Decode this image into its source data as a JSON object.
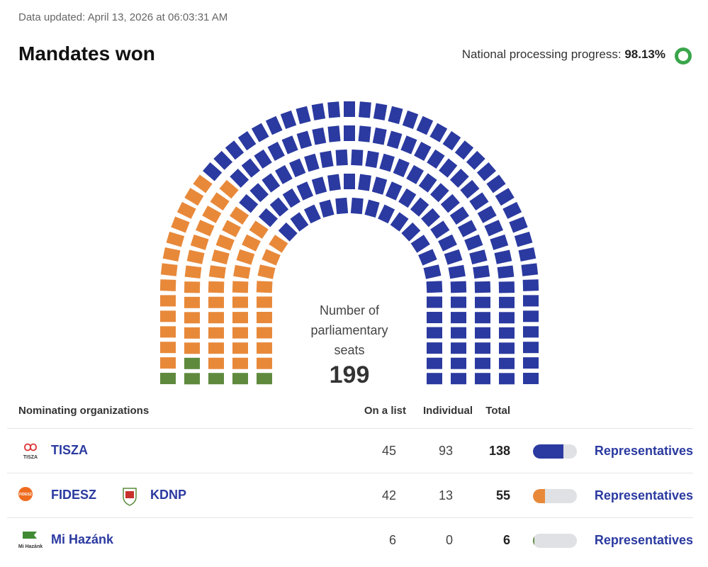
{
  "header": {
    "updated": "Data updated: April 13, 2026 at 06:03:31 AM",
    "title": "Mandates won",
    "progress_label": "National processing progress:",
    "progress_value": "98.13%"
  },
  "seat_chart": {
    "center_label": "Number of parliamentary seats",
    "total": 199
  },
  "table": {
    "columns": [
      "Nominating organizations",
      "On a list",
      "Individual",
      "Total"
    ],
    "rows": [
      {
        "orgs": [
          {
            "name": "TISZA",
            "logo_text": "TISZA"
          }
        ],
        "on_list": 45,
        "individual": 93,
        "total": 138,
        "color": "#2b3aa0",
        "link": "Representatives"
      },
      {
        "orgs": [
          {
            "name": "FIDESZ",
            "logo_text": "FIDESZ"
          },
          {
            "name": "KDNP"
          }
        ],
        "on_list": 42,
        "individual": 13,
        "total": 55,
        "color": "#e8893a",
        "link": "Representatives"
      },
      {
        "orgs": [
          {
            "name": "Mi Hazánk",
            "logo_text": "Mi Hazánk"
          }
        ],
        "on_list": 6,
        "individual": 0,
        "total": 6,
        "color": "#5f8a3e",
        "link": "Representatives"
      }
    ]
  }
}
